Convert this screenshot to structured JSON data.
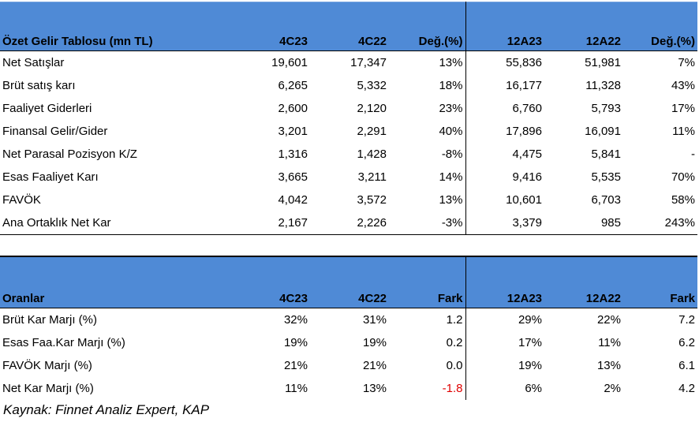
{
  "income_table": {
    "headers": [
      "Özet Gelir Tablosu (mn TL)",
      "4C23",
      "4C22",
      "Değ.(%)",
      "12A23",
      "12A22",
      "Değ.(%)"
    ],
    "rows": [
      [
        "Net Satışlar",
        "19,601",
        "17,347",
        "13%",
        "55,836",
        "51,981",
        "7%"
      ],
      [
        "Brüt satış karı",
        "6,265",
        "5,332",
        "18%",
        "16,177",
        "11,328",
        "43%"
      ],
      [
        "Faaliyet Giderleri",
        "2,600",
        "2,120",
        "23%",
        "6,760",
        "5,793",
        "17%"
      ],
      [
        "Finansal Gelir/Gider",
        "3,201",
        "2,291",
        "40%",
        "17,896",
        "16,091",
        "11%"
      ],
      [
        "Net Parasal Pozisyon K/Z",
        "1,316",
        "1,428",
        "-8%",
        "4,475",
        "5,841",
        "-"
      ],
      [
        "Esas Faaliyet Karı",
        "3,665",
        "3,211",
        "14%",
        "9,416",
        "5,535",
        "70%"
      ],
      [
        "FAVÖK",
        "4,042",
        "3,572",
        "13%",
        "10,601",
        "6,703",
        "58%"
      ],
      [
        "Ana Ortaklık Net Kar",
        "2,167",
        "2,226",
        "-3%",
        "3,379",
        "985",
        "243%"
      ]
    ]
  },
  "ratio_table": {
    "headers": [
      "Oranlar",
      "4C23",
      "4C22",
      "Fark",
      "12A23",
      "12A22",
      "Fark"
    ],
    "rows": [
      [
        "Brüt Kar Marjı (%)",
        "32%",
        "31%",
        "1.2",
        "29%",
        "22%",
        "7.2"
      ],
      [
        "Esas Faa.Kar Marjı (%)",
        "19%",
        "19%",
        "0.2",
        "17%",
        "11%",
        "6.2"
      ],
      [
        "FAVÖK Marjı (%)",
        "21%",
        "21%",
        "0.0",
        "19%",
        "13%",
        "6.1"
      ],
      [
        "Net Kar Marjı (%)",
        "11%",
        "13%",
        "-1.8",
        "6%",
        "2%",
        "4.2"
      ]
    ]
  },
  "colors": {
    "header_bg": "#4f8ad6",
    "negative": "#e00000"
  },
  "source": "Kaynak: Finnet Analiz Expert, KAP"
}
